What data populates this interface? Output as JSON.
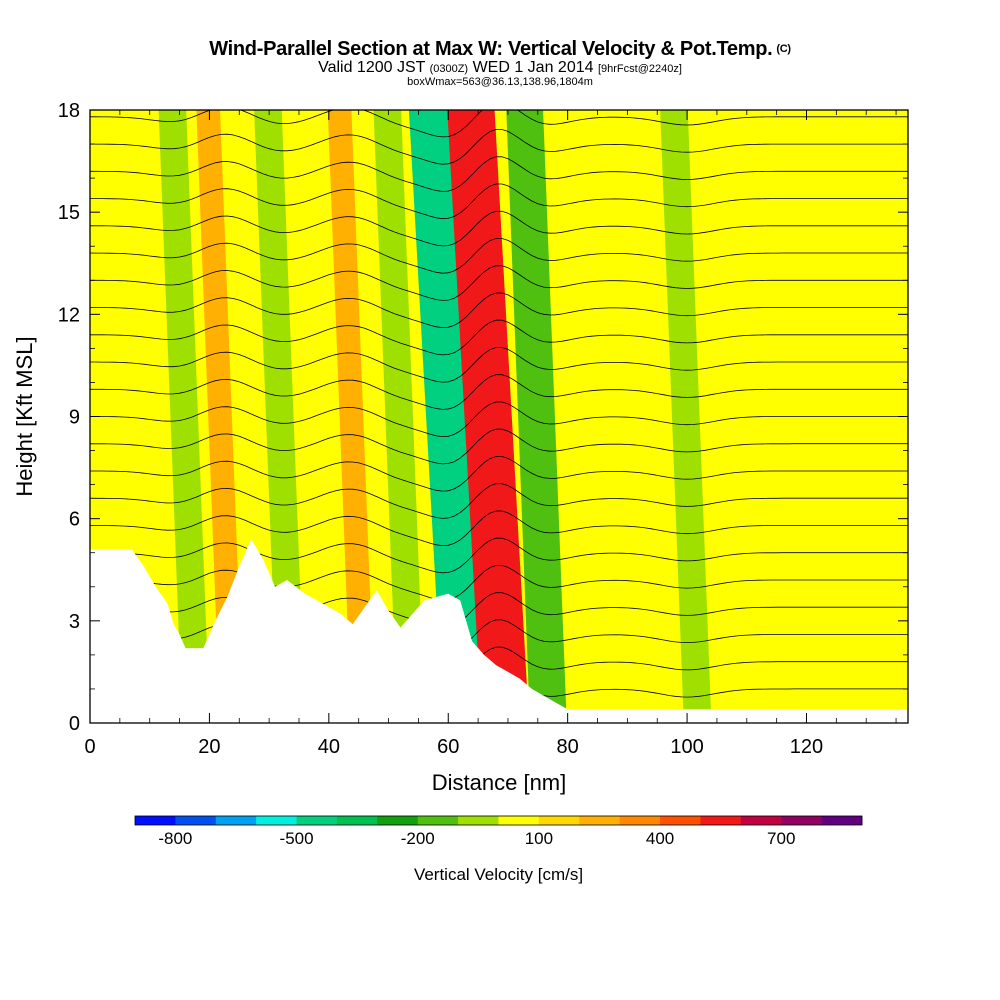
{
  "chart_data": {
    "type": "heatmap",
    "title": "Wind-Parallel Section at Max W: Vertical Velocity & Pot.Temp.",
    "title_tag": "(C)",
    "subtitle_parts": [
      "Valid 1200 JST",
      "(0300Z)",
      "WED 1 Jan 2014",
      "[9hrFcst@2240z]"
    ],
    "info_line": "boxWmax=563@36.13,138.96,1804m",
    "xlabel": "Distance [nm]",
    "ylabel": "Height [Kft MSL]",
    "xlim": [
      0,
      137
    ],
    "ylim": [
      0,
      18
    ],
    "x_ticks": [
      "0",
      "20",
      "40",
      "60",
      "80",
      "100",
      "120"
    ],
    "x_tick_values": [
      0,
      20,
      40,
      60,
      80,
      100,
      120
    ],
    "y_ticks": [
      "0",
      "3",
      "6",
      "9",
      "12",
      "15",
      "18"
    ],
    "y_tick_values": [
      0,
      3,
      6,
      9,
      12,
      15,
      18
    ],
    "colorbar": {
      "label": "Vertical Velocity [cm/s]",
      "bin_edges": [
        -900,
        -800,
        -700,
        -600,
        -500,
        -400,
        -300,
        -200,
        -100,
        0,
        100,
        200,
        300,
        400,
        500,
        600,
        700,
        800,
        900
      ],
      "colors": [
        "#0010ff",
        "#0050f0",
        "#00a0f0",
        "#00f0e0",
        "#00d080",
        "#00c050",
        "#10a010",
        "#50c010",
        "#a0e000",
        "#ffff00",
        "#ffd800",
        "#ffb000",
        "#ff8800",
        "#ff5000",
        "#f01818",
        "#c00040",
        "#900060",
        "#600080"
      ],
      "tick_labels": [
        "-800",
        "-500",
        "-200",
        "100",
        "400",
        "700"
      ],
      "tick_values": [
        -800,
        -500,
        -200,
        100,
        400,
        700
      ]
    },
    "terrain": {
      "x": [
        0,
        7,
        9,
        11,
        13,
        14,
        15,
        16,
        19,
        21,
        23,
        25,
        27,
        29,
        31,
        33,
        36,
        39,
        42,
        44,
        46,
        48,
        50,
        52,
        54,
        56,
        58,
        60,
        62,
        64,
        66,
        68,
        70,
        72,
        74,
        76,
        78,
        80,
        137
      ],
      "h": [
        5.1,
        5.1,
        4.6,
        4.0,
        3.5,
        2.9,
        2.6,
        2.2,
        2.2,
        3.0,
        3.7,
        4.6,
        5.4,
        4.8,
        4.0,
        4.2,
        3.8,
        3.5,
        3.2,
        2.9,
        3.4,
        3.9,
        3.3,
        2.8,
        3.2,
        3.6,
        3.7,
        3.8,
        3.6,
        2.4,
        2.0,
        1.7,
        1.5,
        1.3,
        1.0,
        0.8,
        0.6,
        0.4,
        0.4
      ]
    },
    "w_features": [
      {
        "x": 16,
        "w": -150,
        "type": "downdraft"
      },
      {
        "x": 22,
        "w": 250,
        "type": "updraft"
      },
      {
        "x": 32,
        "w": -150,
        "type": "downdraft"
      },
      {
        "x": 44,
        "w": 200,
        "type": "updraft"
      },
      {
        "x": 52,
        "w": -150,
        "type": "downdraft"
      },
      {
        "x": 62,
        "w": -550,
        "type": "downdraft"
      },
      {
        "x": 67,
        "w": 563,
        "type": "updraft"
      },
      {
        "x": 75,
        "w": -200,
        "type": "downdraft"
      },
      {
        "x": 100,
        "w": -150,
        "type": "downdraft"
      }
    ]
  }
}
